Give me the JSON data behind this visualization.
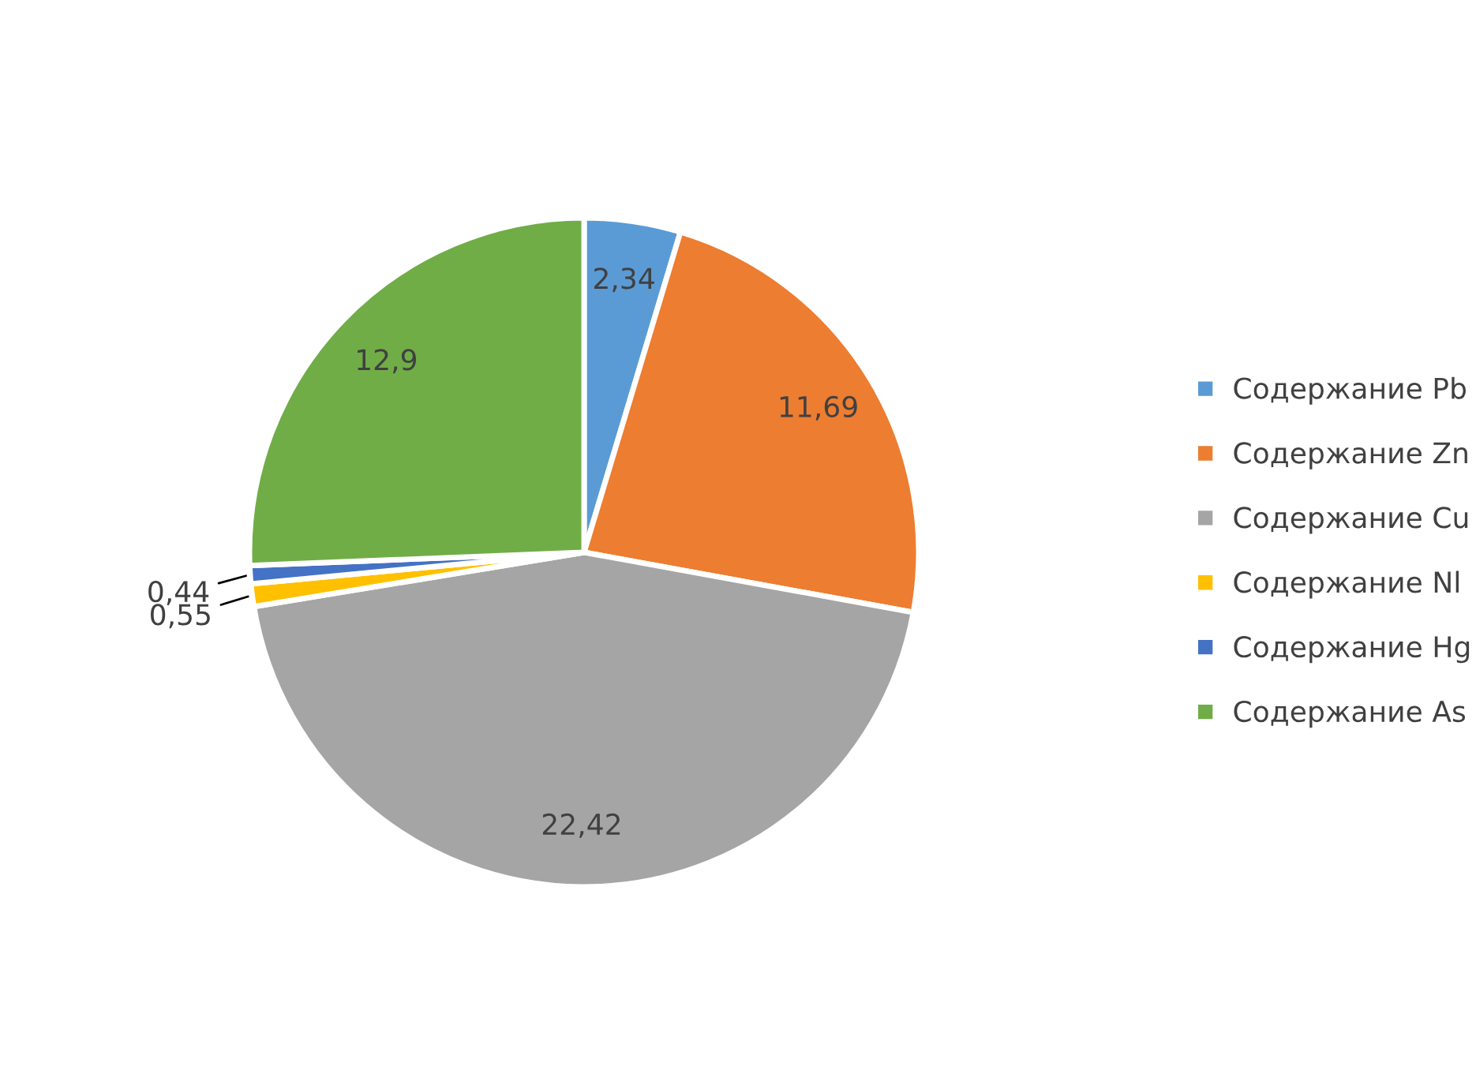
{
  "chart_data": {
    "type": "pie",
    "categories": [
      "Содержание Pb",
      "Содержание Zn",
      "Содержание Cu",
      "Содержание Nl",
      "Содержание Hg",
      "Содержание As"
    ],
    "values": [
      2.34,
      11.69,
      22.42,
      0.55,
      0.44,
      12.9
    ],
    "value_labels": [
      "2,34",
      "11,69",
      "22,42",
      "0,55",
      "0,44",
      "12,9"
    ],
    "colors": [
      "#5b9bd5",
      "#ed7d31",
      "#a5a5a5",
      "#ffc000",
      "#4472c4",
      "#70ad47"
    ],
    "legend": "right"
  }
}
